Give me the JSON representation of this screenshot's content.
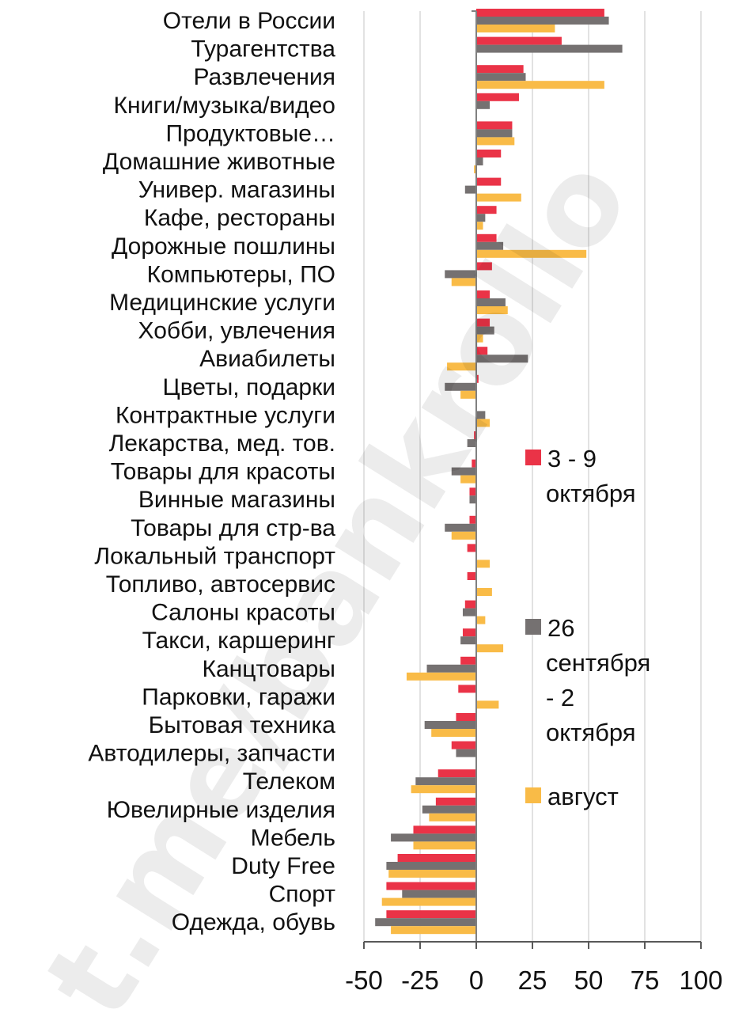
{
  "chart_data": {
    "type": "bar",
    "orientation": "horizontal",
    "categories": [
      "Отели в России",
      "Турагентства",
      "Развлечения",
      "Книги/музыка/видео",
      "Продуктовые…",
      "Домашние животные",
      "Универ. магазины",
      "Кафе, рестораны",
      "Дорожные пошлины",
      "Компьютеры, ПО",
      "Медицинские услуги",
      "Хобби, увлечения",
      "Авиабилеты",
      "Цветы, подарки",
      "Контрактные услуги",
      "Лекарства, мед. тов.",
      "Товары для красоты",
      "Винные магазины",
      "Товары для стр-ва",
      "Локальный транспорт",
      "Топливо, автосервис",
      "Салоны красоты",
      "Такси, каршеринг",
      "Канцтовары",
      "Парковки, гаражи",
      "Бытовая техника",
      "Автодилеры, запчасти",
      "Телеком",
      "Ювелирные изделия",
      "Мебель",
      "Duty Free",
      "Спорт",
      "Одежда, обувь"
    ],
    "series": [
      {
        "name": "3 - 9 октября",
        "color": "#ea3347",
        "values": [
          57,
          38,
          21,
          19,
          16,
          11,
          11,
          9,
          9,
          7,
          6,
          6,
          5,
          1,
          0,
          -1,
          -2,
          -3,
          -3,
          -4,
          -4,
          -5,
          -6,
          -7,
          -8,
          -9,
          -11,
          -17,
          -18,
          -28,
          -35,
          -40,
          -40
        ]
      },
      {
        "name": "26 сентября - 2 октября",
        "color": "#757171",
        "values": [
          59,
          65,
          22,
          6,
          16,
          3,
          -5,
          4,
          12,
          -14,
          13,
          8,
          23,
          -14,
          4,
          -4,
          -11,
          -3,
          -14,
          0,
          0,
          -6,
          -7,
          -22,
          0,
          -23,
          -9,
          -27,
          -24,
          -38,
          -40,
          -33,
          -45
        ]
      },
      {
        "name": "август",
        "color": "#f9bb47",
        "values": [
          35,
          0,
          57,
          0,
          17,
          -1,
          20,
          3,
          49,
          -11,
          14,
          3,
          -13,
          -7,
          6,
          0,
          -7,
          0,
          -11,
          6,
          7,
          4,
          12,
          -31,
          10,
          -20,
          0,
          -29,
          -21,
          -28,
          -39,
          -42,
          -38
        ]
      }
    ],
    "xlim": [
      -50,
      100
    ],
    "xticks": [
      "-50",
      "-25",
      "0",
      "25",
      "50",
      "75",
      "100"
    ],
    "grid": true,
    "legend_position": "right",
    "legend": [
      {
        "lines": [
          "3 - 9",
          "октября"
        ]
      },
      {
        "lines": [
          "26",
          "сентября",
          "- 2",
          "октября"
        ]
      },
      {
        "lines": [
          "август"
        ]
      }
    ],
    "watermark": "t.me/bankrollo"
  }
}
